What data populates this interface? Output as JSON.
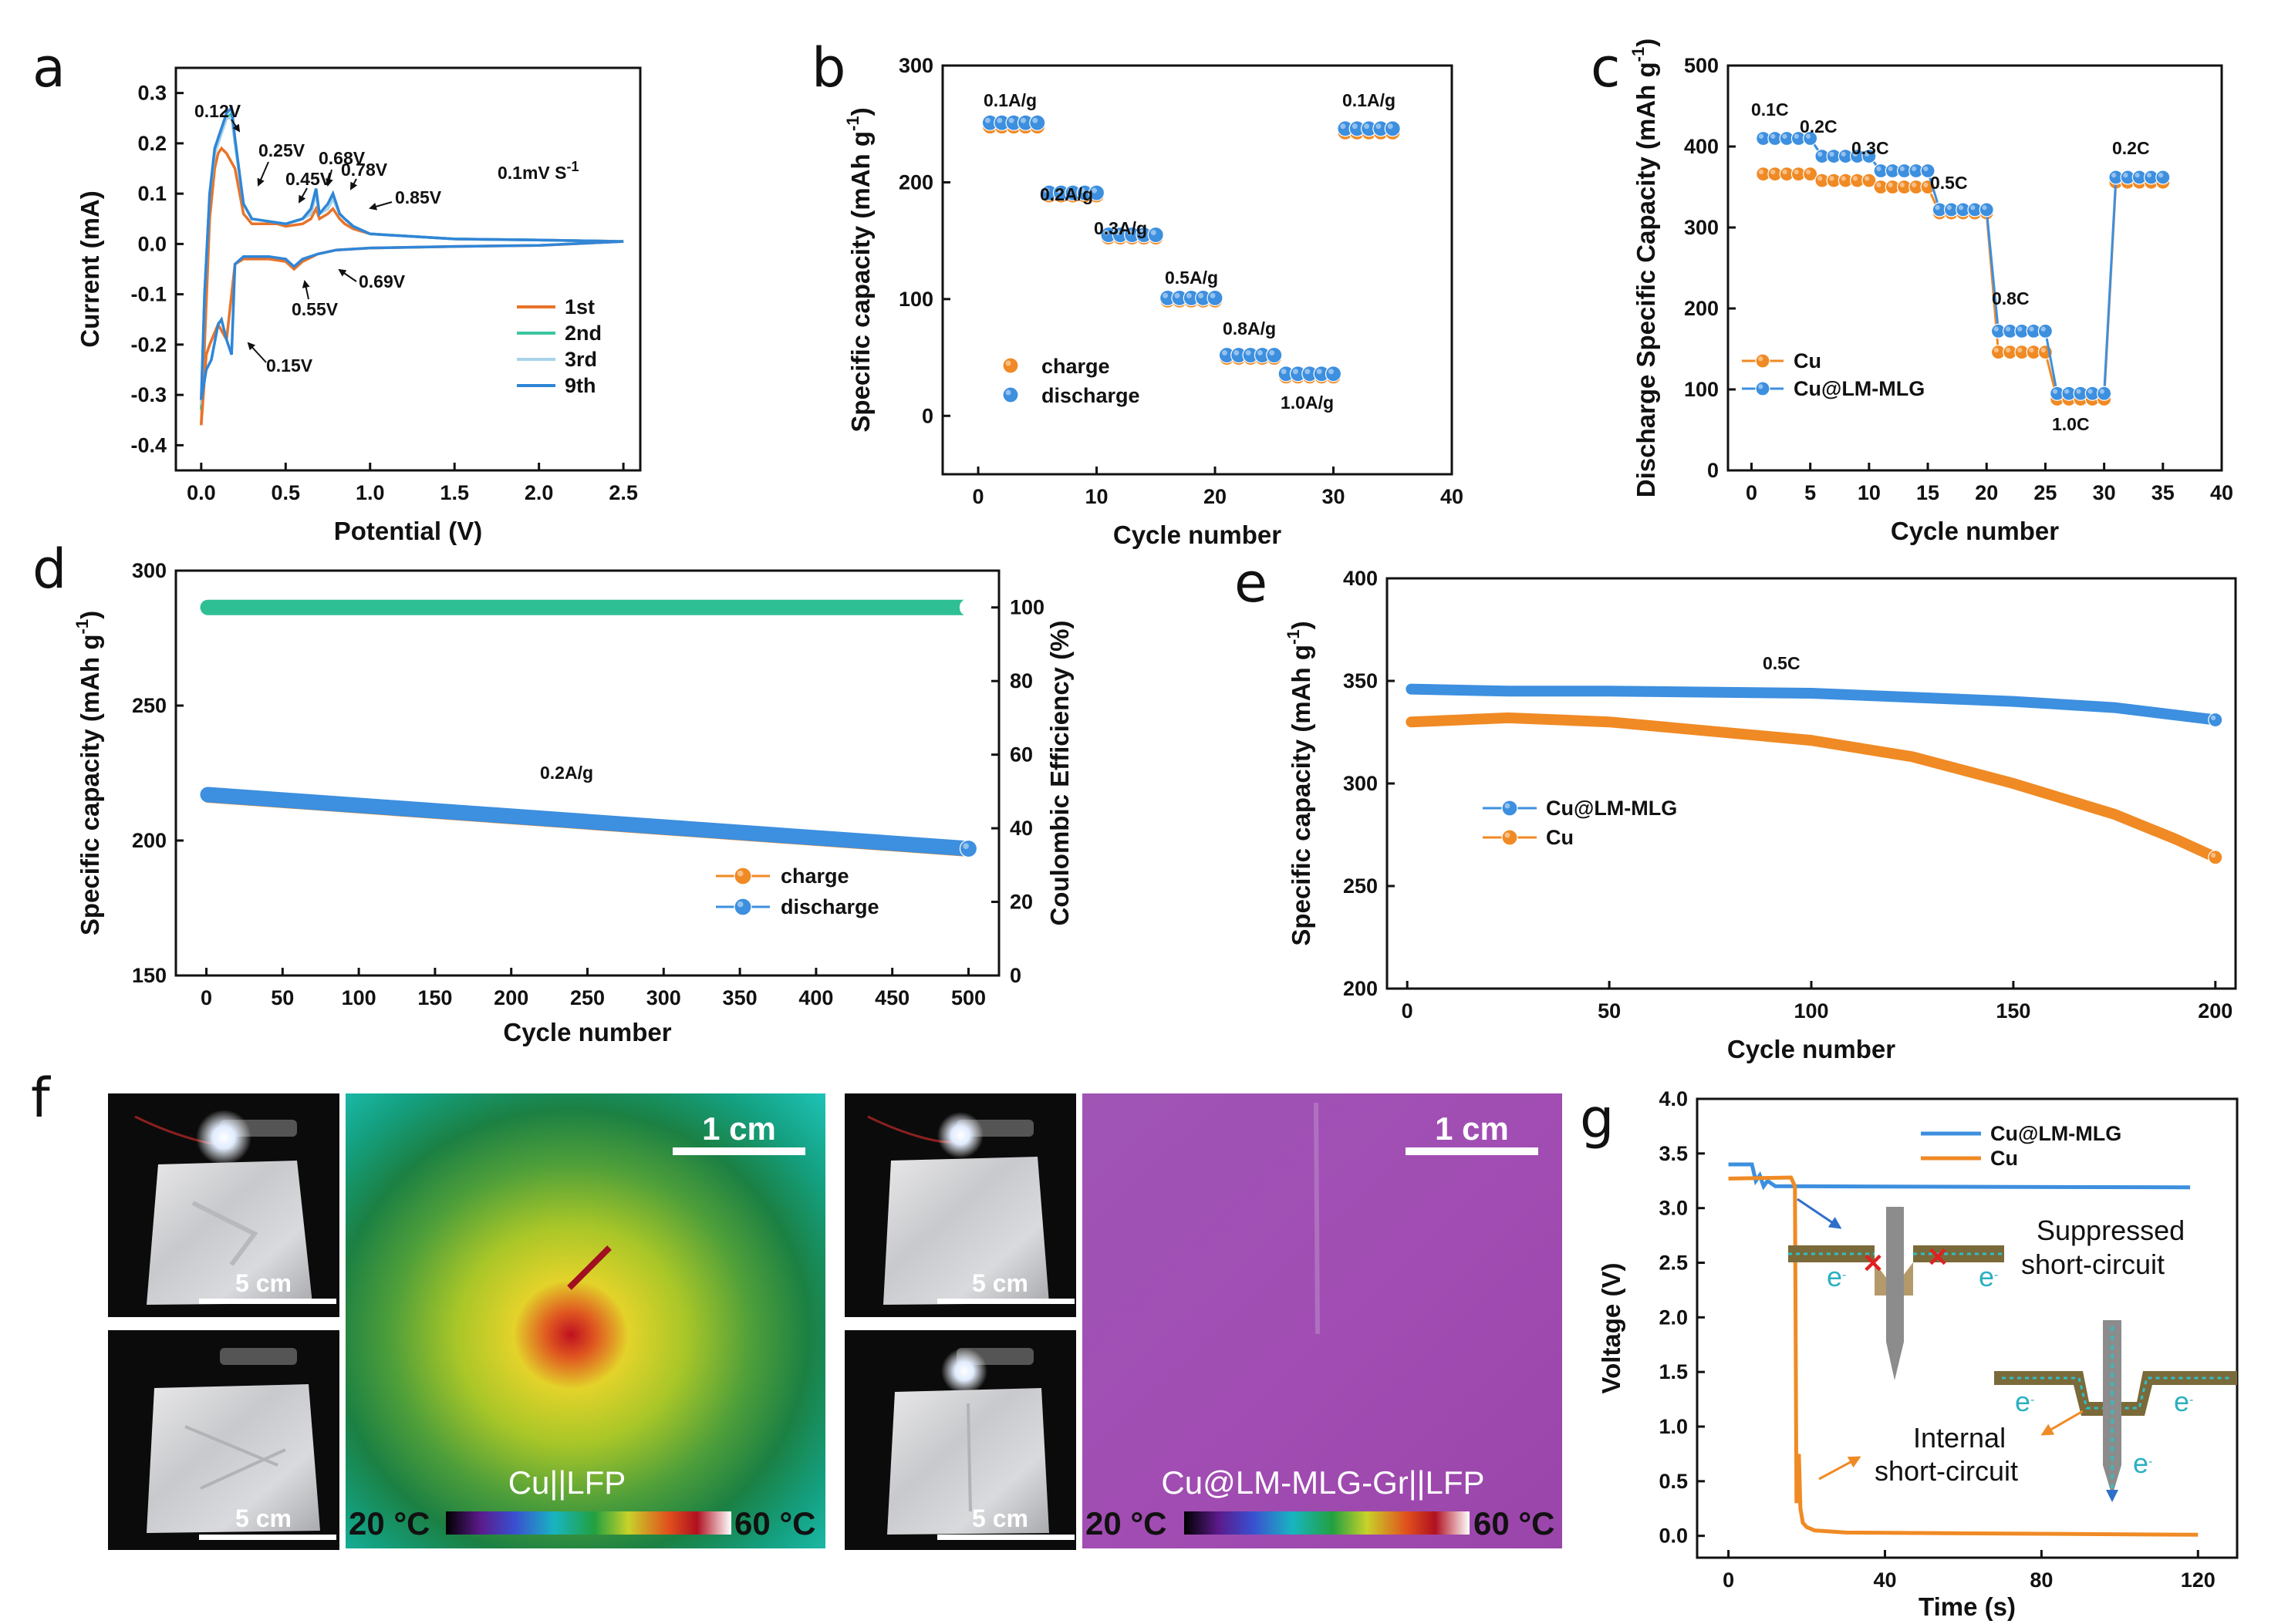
{
  "colors": {
    "orange": "#f08a24",
    "blue": "#3d8fdf",
    "teal": "#2fbf95",
    "lightblue": "#9fc8e5",
    "cv_orange": "#e8732a",
    "cv_teal": "#3cc6a0",
    "cv_light": "#a8d3ea",
    "cv_blue": "#2f86d8"
  },
  "panels": {
    "a": "a",
    "b": "b",
    "c": "c",
    "d": "d",
    "e": "e",
    "f": "f",
    "g": "g"
  },
  "chart_data": [
    {
      "id": "a",
      "type": "line",
      "xlabel": "Potential (V)",
      "ylabel": "Current (mA)",
      "xlim": [
        -0.15,
        2.6
      ],
      "ylim": [
        -0.45,
        0.35
      ],
      "xticks": [
        "0.0",
        "0.5",
        "1.0",
        "1.5",
        "2.0",
        "2.5"
      ],
      "yticks": [
        "-0.4",
        "-0.3",
        "-0.2",
        "-0.1",
        "0.0",
        "0.1",
        "0.2",
        "0.3"
      ],
      "note": "0.1mV S",
      "note_sup": "-1",
      "annotations": [
        "0.12V",
        "0.25V",
        "0.45V",
        "0.68V",
        "0.78V",
        "0.85V",
        "0.55V",
        "0.69V",
        "0.15V"
      ],
      "legend": [
        "1st",
        "2nd",
        "3rd",
        "9th"
      ],
      "series": [
        {
          "name": "1st",
          "x": [
            0.0,
            0.02,
            0.05,
            0.08,
            0.1,
            0.12,
            0.15,
            0.2,
            0.25,
            0.3,
            0.45,
            0.5,
            0.6,
            0.65,
            0.68,
            0.7,
            0.75,
            0.78,
            0.82,
            0.85,
            0.9,
            1.0,
            1.5,
            2.0,
            2.5
          ],
          "y": [
            -0.36,
            -0.2,
            0.05,
            0.15,
            0.18,
            0.19,
            0.18,
            0.15,
            0.06,
            0.04,
            0.04,
            0.035,
            0.04,
            0.05,
            0.07,
            0.05,
            0.06,
            0.07,
            0.05,
            0.04,
            0.03,
            0.02,
            0.01,
            0.008,
            0.005
          ]
        },
        {
          "name": "2nd",
          "x": [
            0.0,
            0.02,
            0.05,
            0.08,
            0.12,
            0.15,
            0.18,
            0.2,
            0.25,
            0.3,
            0.5,
            0.6,
            0.65,
            0.68,
            0.7,
            0.75,
            0.78,
            0.82,
            0.85,
            0.9,
            1.0,
            1.5,
            2.0,
            2.5
          ],
          "y": [
            -0.33,
            -0.1,
            0.1,
            0.18,
            0.22,
            0.25,
            0.26,
            0.2,
            0.08,
            0.05,
            0.04,
            0.05,
            0.06,
            0.1,
            0.06,
            0.07,
            0.09,
            0.06,
            0.05,
            0.035,
            0.02,
            0.01,
            0.008,
            0.005
          ]
        },
        {
          "name": "3rd",
          "x": [
            0.0,
            0.02,
            0.05,
            0.08,
            0.12,
            0.15,
            0.18,
            0.2,
            0.25,
            0.3,
            0.5,
            0.6,
            0.65,
            0.68,
            0.7,
            0.75,
            0.78,
            0.82,
            0.85,
            0.9,
            1.0,
            1.5,
            2.0,
            2.5
          ],
          "y": [
            -0.32,
            -0.1,
            0.1,
            0.18,
            0.22,
            0.25,
            0.25,
            0.2,
            0.08,
            0.05,
            0.04,
            0.05,
            0.06,
            0.1,
            0.06,
            0.07,
            0.09,
            0.06,
            0.05,
            0.035,
            0.02,
            0.01,
            0.008,
            0.005
          ]
        },
        {
          "name": "9th",
          "x": [
            0.0,
            0.02,
            0.05,
            0.08,
            0.12,
            0.15,
            0.18,
            0.2,
            0.25,
            0.3,
            0.5,
            0.6,
            0.65,
            0.68,
            0.7,
            0.75,
            0.78,
            0.82,
            0.85,
            0.9,
            1.0,
            1.5,
            2.0,
            2.5
          ],
          "y": [
            -0.31,
            -0.1,
            0.1,
            0.19,
            0.23,
            0.26,
            0.27,
            0.21,
            0.08,
            0.05,
            0.04,
            0.05,
            0.07,
            0.11,
            0.06,
            0.08,
            0.1,
            0.06,
            0.05,
            0.035,
            0.02,
            0.01,
            0.008,
            0.005
          ]
        },
        {
          "name": "1st-reverse",
          "x": [
            0.0,
            0.03,
            0.05,
            0.1,
            0.15,
            0.2,
            0.25,
            0.4,
            0.5,
            0.55,
            0.6,
            0.69,
            0.8,
            1.0,
            1.5,
            2.0,
            2.5
          ],
          "y": [
            -0.36,
            -0.22,
            -0.2,
            -0.16,
            -0.19,
            -0.04,
            -0.03,
            -0.03,
            -0.035,
            -0.05,
            -0.035,
            -0.02,
            -0.012,
            -0.008,
            -0.005,
            -0.003,
            0.005
          ]
        },
        {
          "name": "9th-reverse",
          "x": [
            0.0,
            0.03,
            0.06,
            0.1,
            0.12,
            0.15,
            0.18,
            0.2,
            0.25,
            0.4,
            0.5,
            0.55,
            0.6,
            0.69,
            0.8,
            1.0,
            1.5,
            2.0,
            2.5
          ],
          "y": [
            -0.31,
            -0.25,
            -0.23,
            -0.16,
            -0.15,
            -0.19,
            -0.22,
            -0.04,
            -0.025,
            -0.025,
            -0.03,
            -0.045,
            -0.03,
            -0.02,
            -0.012,
            -0.008,
            -0.005,
            -0.003,
            0.005
          ]
        }
      ]
    },
    {
      "id": "b",
      "type": "scatter",
      "xlabel": "Cycle number",
      "ylabel": "Specific capacity (mAh g",
      "ylabel_sup": "-1",
      "ylabel_tail": ")",
      "xlim": [
        -3,
        40
      ],
      "ylim": [
        -50,
        300
      ],
      "xticks": [
        "0",
        "10",
        "20",
        "30",
        "40"
      ],
      "yticks": [
        "0",
        "100",
        "200",
        "300"
      ],
      "rate_labels": [
        "0.1A/g",
        "0.2A/g",
        "0.3A/g",
        "0.5A/g",
        "0.8A/g",
        "1.0A/g",
        "0.1A/g"
      ],
      "legend": [
        "charge",
        "discharge"
      ],
      "series": [
        {
          "name": "charge",
          "segments": [
            [
              1,
              5,
              248
            ],
            [
              6,
              10,
              189
            ],
            [
              11,
              15,
              153
            ],
            [
              16,
              20,
              99
            ],
            [
              21,
              25,
              50
            ],
            [
              26,
              30,
              34
            ],
            [
              31,
              35,
              243
            ]
          ]
        },
        {
          "name": "discharge",
          "segments": [
            [
              1,
              5,
              251
            ],
            [
              6,
              10,
              191
            ],
            [
              11,
              15,
              155
            ],
            [
              16,
              20,
              101
            ],
            [
              21,
              25,
              52
            ],
            [
              26,
              30,
              36
            ],
            [
              31,
              35,
              246
            ]
          ]
        }
      ]
    },
    {
      "id": "c",
      "type": "line",
      "xlabel": "Cycle number",
      "ylabel": "Discharge Specific Capacity (mAh g",
      "ylabel_sup": "-1",
      "ylabel_tail": ")",
      "xlim": [
        -2,
        40
      ],
      "ylim": [
        0,
        500
      ],
      "xticks": [
        "0",
        "5",
        "10",
        "15",
        "20",
        "25",
        "30",
        "35",
        "40"
      ],
      "yticks": [
        "0",
        "100",
        "200",
        "300",
        "400",
        "500"
      ],
      "rate_labels": [
        "0.1C",
        "0.2C",
        "0.3C",
        "0.5C",
        "0.8C",
        "1.0C",
        "0.2C"
      ],
      "legend": [
        "Cu",
        "Cu@LM-MLG"
      ],
      "series": [
        {
          "name": "Cu",
          "segments": [
            [
              1,
              5,
              366
            ],
            [
              6,
              10,
              358
            ],
            [
              11,
              15,
              350
            ],
            [
              16,
              20,
              318
            ],
            [
              21,
              25,
              146
            ],
            [
              26,
              30,
              88
            ],
            [
              31,
              35,
              356
            ]
          ]
        },
        {
          "name": "Cu@LM-MLG",
          "segments": [
            [
              1,
              5,
              410
            ],
            [
              6,
              10,
              388
            ],
            [
              11,
              15,
              370
            ],
            [
              16,
              20,
              322
            ],
            [
              21,
              25,
              172
            ],
            [
              26,
              30,
              95
            ],
            [
              31,
              35,
              362
            ]
          ]
        }
      ]
    },
    {
      "id": "d",
      "type": "scatter",
      "xlabel": "Cycle number",
      "ylabel": "Specific capacity (mAh g",
      "ylabel_sup": "-1",
      "ylabel_tail": ")",
      "y2label": "Coulombic Efficiency (%)",
      "xlim": [
        -20,
        520
      ],
      "ylim": [
        150,
        300
      ],
      "y2lim": [
        0,
        110
      ],
      "xticks": [
        "0",
        "50",
        "100",
        "150",
        "200",
        "250",
        "300",
        "350",
        "400",
        "450",
        "500"
      ],
      "yticks": [
        "150",
        "200",
        "250",
        "300"
      ],
      "y2ticks": [
        "0",
        "20",
        "40",
        "60",
        "80",
        "100"
      ],
      "rate_label": "0.2A/g",
      "legend": [
        "charge",
        "discharge"
      ],
      "series": [
        {
          "name": "charge",
          "x": [
            1,
            500
          ],
          "y": [
            216,
            196
          ]
        },
        {
          "name": "discharge",
          "x": [
            1,
            500
          ],
          "y": [
            217,
            197
          ]
        },
        {
          "name": "coulombic efficiency",
          "x": [
            1,
            500
          ],
          "y": [
            100,
            100
          ]
        }
      ]
    },
    {
      "id": "e",
      "type": "line",
      "xlabel": "Cycle number",
      "ylabel": "Specific capacity (mAh g",
      "ylabel_sup": "-1",
      "ylabel_tail": ")",
      "xlim": [
        -5,
        205
      ],
      "ylim": [
        200,
        400
      ],
      "xticks": [
        "0",
        "50",
        "100",
        "150",
        "200"
      ],
      "yticks": [
        "200",
        "250",
        "300",
        "350",
        "400"
      ],
      "rate_label": "0.5C",
      "legend": [
        "Cu@LM-MLG",
        "Cu"
      ],
      "series": [
        {
          "name": "Cu@LM-MLG",
          "x": [
            1,
            25,
            50,
            100,
            150,
            175,
            200
          ],
          "y": [
            346,
            345,
            345,
            344,
            340,
            337,
            331
          ]
        },
        {
          "name": "Cu",
          "x": [
            1,
            25,
            50,
            100,
            125,
            150,
            175,
            190,
            200
          ],
          "y": [
            330,
            332,
            330,
            321,
            313,
            300,
            285,
            273,
            264
          ]
        }
      ]
    },
    {
      "id": "g",
      "type": "line",
      "xlabel": "Time (s)",
      "ylabel": "Voltage (V)",
      "xlim": [
        -8,
        130
      ],
      "ylim": [
        -0.2,
        4.0
      ],
      "xticks": [
        "0",
        "40",
        "80",
        "120"
      ],
      "yticks": [
        "0.0",
        "0.5",
        "1.0",
        "1.5",
        "2.0",
        "2.5",
        "3.0",
        "3.5",
        "4.0"
      ],
      "legend": [
        "Cu@LM-MLG",
        "Cu"
      ],
      "annotations": [
        "Suppressed",
        "short-circuit",
        "Internal",
        "short-circuit",
        "e",
        "-"
      ],
      "series": [
        {
          "name": "Cu@LM-MLG",
          "x": [
            0,
            6,
            7,
            8,
            9,
            10,
            12,
            118
          ],
          "y": [
            3.4,
            3.4,
            3.25,
            3.3,
            3.2,
            3.25,
            3.2,
            3.19
          ]
        },
        {
          "name": "Cu",
          "x": [
            0,
            16,
            17,
            17.4,
            18,
            18.4,
            19,
            20,
            22,
            30,
            120
          ],
          "y": [
            3.27,
            3.28,
            3.2,
            0.3,
            0.75,
            0.25,
            0.12,
            0.08,
            0.05,
            0.03,
            0.01
          ]
        }
      ]
    }
  ],
  "photos": {
    "scale_5cm": "5 cm",
    "scale_1cm": "1 cm",
    "left_label": "Cu||LFP",
    "right_label": "Cu@LM-MLG-Gr||LFP",
    "temp_low": "20 °C",
    "temp_high": "60 °C"
  }
}
